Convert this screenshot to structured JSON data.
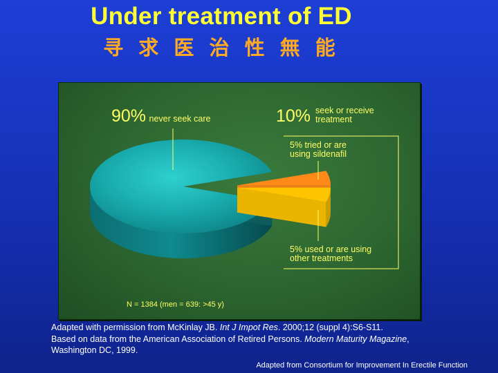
{
  "slide": {
    "title": "Under treatment of ED",
    "subtitle": "寻 求 医 治 性 無 能"
  },
  "chart_data": {
    "type": "pie",
    "slices": [
      {
        "label": "never seek care",
        "value": 90,
        "value_label": "90%",
        "color": "#1aa8a8"
      },
      {
        "label": "tried or are using sildenafil",
        "value": 5,
        "value_label": "5%",
        "color": "#ff8a1a",
        "exploded": true
      },
      {
        "label": "used or are using other treatments",
        "value": 5,
        "value_label": "5%",
        "color": "#ffc400",
        "exploded": true
      }
    ],
    "group": {
      "value_label": "10%",
      "label": "seek or receive treatment"
    }
  },
  "labels": {
    "main_pct": "90%",
    "main_text": "never seek care",
    "group_pct": "10%",
    "group_line1": "seek or receive",
    "group_line2": "treatment",
    "sildenafil_line1": "5% tried or are",
    "sildenafil_line2": "using sildenafil",
    "other_line1": "5% used or are using",
    "other_line2": "other treatments",
    "sample": "N = 1384 (men = 639: >45 y)"
  },
  "source": {
    "line1_a": "Adapted with permission from McKinlay JB. ",
    "line1_journal": "Int J Impot Res",
    "line1_b": ". 2000;12 (suppl 4):S6-S11.",
    "line2_a": "Based on data from the American Association of Retired Persons. ",
    "line2_mag": "Modern Maturity Magazine",
    "line2_b": ", Washington DC, 1999."
  },
  "credit": "Adapted from Consortium for Improvement In Erectile Function"
}
